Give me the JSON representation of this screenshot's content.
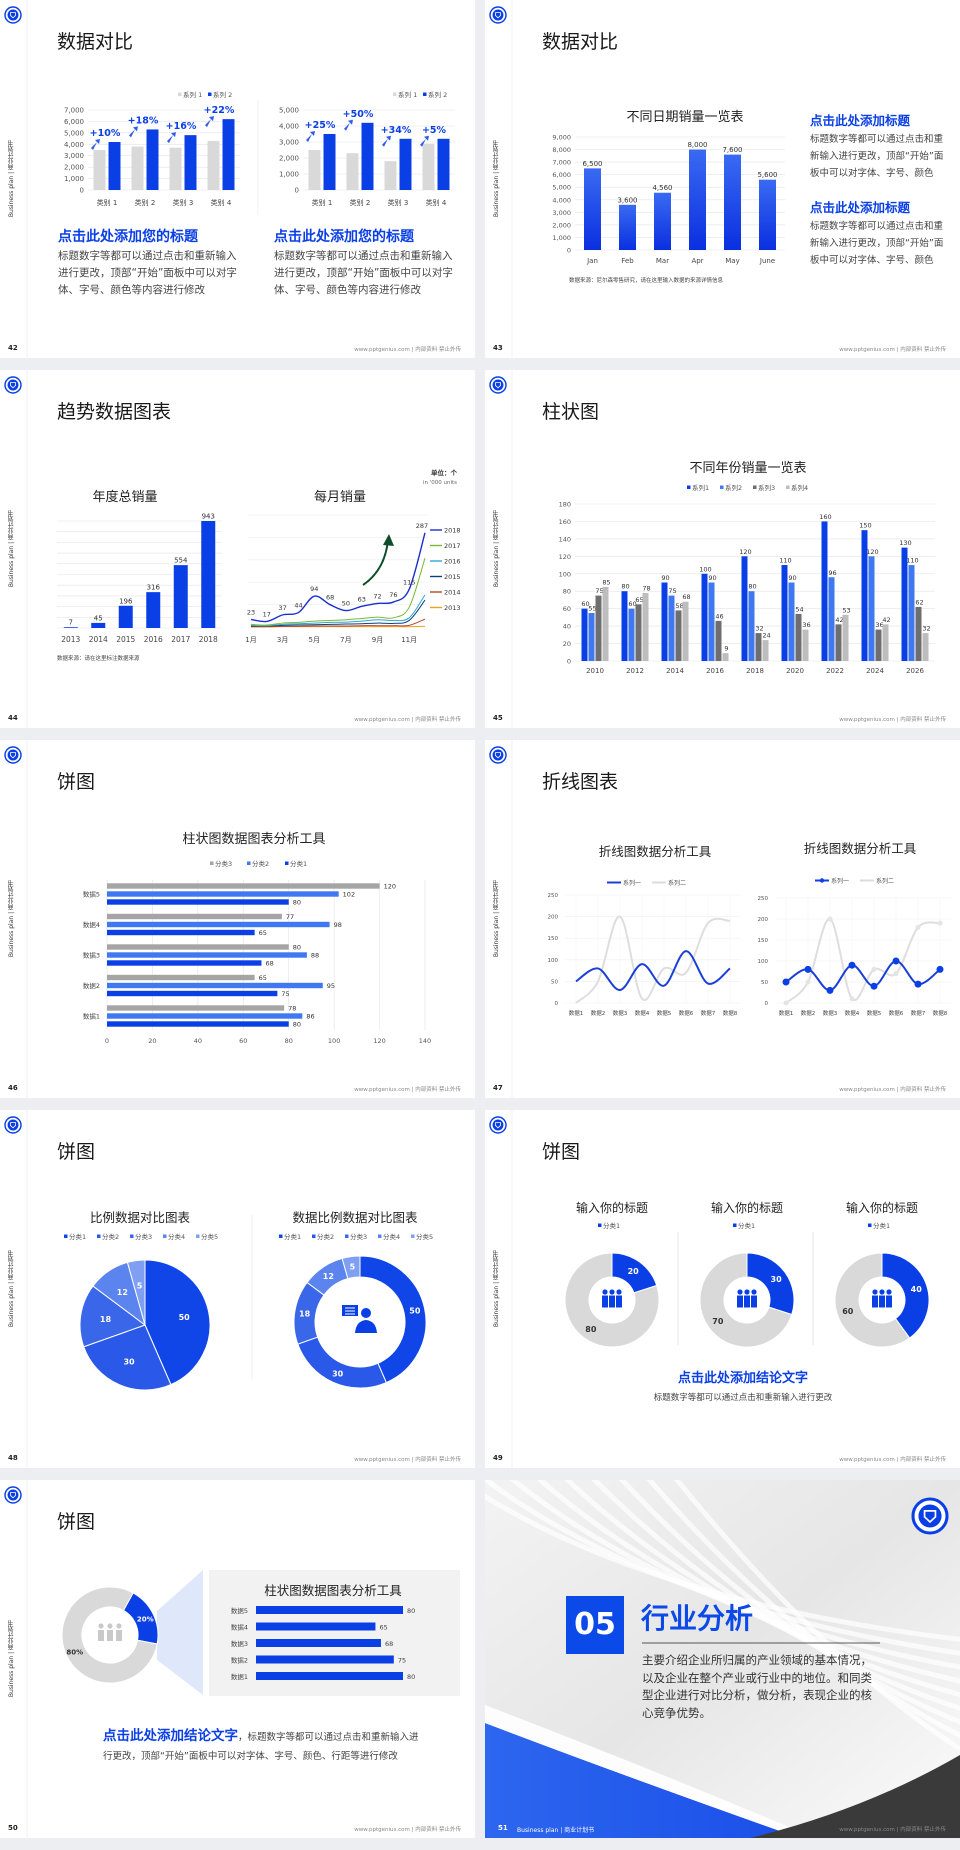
{
  "common": {
    "side_label": "Business plan | 商业计划书",
    "footer": "www.pptgenius.com | 内部资料 禁止外传"
  },
  "colors": {
    "primary": "#0b3fe6",
    "secondary": "#3f78f0",
    "gray": "#d9d9d9",
    "dark_gray": "#6e6e6e",
    "light_gray": "#bdbdbd"
  },
  "slides": [
    {
      "page": "42",
      "title": "数据对比",
      "blocks": [
        {
          "heading": "点击此处添加您的标题",
          "body": "标题数字等都可以通过点击和重新输入进行更改，顶部“开始”面板中可以对字体、字号、颜色等内容进行修改"
        },
        {
          "heading": "点击此处添加您的标题",
          "body": "标题数字等都可以通过点击和重新输入进行更改，顶部“开始”面板中可以对字体、字号、颜色等内容进行修改"
        }
      ]
    },
    {
      "page": "43",
      "title": "数据对比",
      "source": "数据来源：尼尔森零售研究，请在这里输入数据的来源详情信息",
      "blocks": [
        {
          "heading": "点击此处添加标题",
          "body": "标题数字等都可以通过点击和重新输入进行更改，顶部“开始”面板中可以对字体、字号、颜色"
        },
        {
          "heading": "点击此处添加标题",
          "body": "标题数字等都可以通过点击和重新输入进行更改，顶部“开始”面板中可以对字体、字号、颜色"
        }
      ]
    },
    {
      "page": "44",
      "title": "趋势数据图表",
      "source": "数据来源：请在这里标注数据来源",
      "unit": "单位：个",
      "unit_sub": "in '000 units"
    },
    {
      "page": "45",
      "title": "柱状图"
    },
    {
      "page": "46",
      "title": "饼图"
    },
    {
      "page": "47",
      "title": "折线图表"
    },
    {
      "page": "48",
      "title": "饼图"
    },
    {
      "page": "49",
      "title": "饼图",
      "conclusion": {
        "heading": "点击此处添加结论文字",
        "body": "标题数字等都可以通过点击和重新输入进行更改"
      }
    },
    {
      "page": "50",
      "title": "饼图",
      "conclusion": {
        "heading": "点击此处添加结论文字",
        "body": "，标题数字等都可以通过点击和重新输入进行更改，顶部“开始”面板中可以对字体、字号、颜色、行距等进行修改"
      }
    },
    {
      "page": "51",
      "section_number": "05",
      "section_title": "行业分析",
      "section_body": "主要介绍企业所归属的产业领域的基本情况，以及企业在整个产业或行业中的地位。和同类型企业进行对比分析，做分析，表现企业的核心竞争优势。",
      "footer_label": "Business plan | 商业计划书"
    }
  ],
  "chart_data": [
    {
      "type": "bar",
      "legend": [
        "系列 1",
        "系列 2"
      ],
      "categories": [
        "类别 1",
        "类别 2",
        "类别 3",
        "类别 4"
      ],
      "yticks": [
        "0",
        "1,000",
        "2,000",
        "3,000",
        "4,000",
        "5,000",
        "6,000",
        "7,000"
      ],
      "ylim": [
        0,
        7000
      ],
      "series": [
        {
          "name": "系列 1",
          "values": [
            3500,
            3800,
            3700,
            4300
          ]
        },
        {
          "name": "系列 2",
          "values": [
            4200,
            5300,
            4800,
            6200
          ]
        }
      ],
      "growth": [
        "+10%",
        "+18%",
        "+16%",
        "+22%"
      ],
      "legend_position": "top-right",
      "grid": true
    },
    {
      "type": "bar",
      "legend": [
        "系列 1",
        "系列 2"
      ],
      "categories": [
        "类别 1",
        "类别 2",
        "类别 3",
        "类别 4"
      ],
      "yticks": [
        "0",
        "1,000",
        "2,000",
        "3,000",
        "4,000",
        "5,000"
      ],
      "ylim": [
        0,
        5000
      ],
      "series": [
        {
          "name": "系列 1",
          "values": [
            2500,
            2300,
            1800,
            2900
          ]
        },
        {
          "name": "系列 2",
          "values": [
            3500,
            4200,
            3200,
            3200
          ]
        }
      ],
      "growth": [
        "+25%",
        "+50%",
        "+34%",
        "+5%"
      ],
      "legend_position": "top-right",
      "grid": true
    },
    {
      "type": "bar",
      "title": "不同日期销量一览表",
      "categories": [
        "Jan",
        "Feb",
        "Mar",
        "Apr",
        "May",
        "June"
      ],
      "yticks": [
        "0",
        "1,000",
        "2,000",
        "3,000",
        "4,000",
        "5,000",
        "6,000",
        "7,000",
        "8,000",
        "9,000"
      ],
      "ylim": [
        0,
        9000
      ],
      "series": [
        {
          "values": [
            6500,
            3600,
            4560,
            8000,
            7600,
            5600
          ],
          "value_labels": [
            "6,500",
            "3,600",
            "4,560",
            "8,000",
            "7,600",
            "5,600"
          ]
        }
      ],
      "grid": true
    },
    {
      "type": "bar",
      "title": "年度总销量",
      "categories": [
        "2013",
        "2014",
        "2015",
        "2016",
        "2017",
        "2018"
      ],
      "series": [
        {
          "values": [
            7,
            45,
            196,
            316,
            554,
            943
          ]
        }
      ],
      "grid": true
    },
    {
      "type": "line",
      "title": "每月销量",
      "x": [
        "1月",
        "2月",
        "3月",
        "4月",
        "5月",
        "6月",
        "7月",
        "8月",
        "9月",
        "10月",
        "11月",
        "12月"
      ],
      "xticks": [
        "1月",
        "3月",
        "5月",
        "7月",
        "9月",
        "11月"
      ],
      "legend_position": "right",
      "series": [
        {
          "name": "2018",
          "color": "#1a2fd0",
          "values": [
            23,
            17,
            37,
            44,
            94,
            68,
            50,
            63,
            72,
            76,
            115,
            287
          ]
        },
        {
          "name": "2017",
          "color": "#7ab833",
          "values": [
            8,
            6,
            12,
            14,
            18,
            20,
            22,
            26,
            30,
            28,
            60,
            210
          ]
        },
        {
          "name": "2016",
          "color": "#2fa5d8",
          "values": [
            5,
            4,
            8,
            10,
            12,
            14,
            15,
            18,
            22,
            20,
            28,
            98
          ]
        },
        {
          "name": "2015",
          "color": "#0f3f7a",
          "values": [
            3,
            3,
            5,
            6,
            7,
            8,
            9,
            10,
            12,
            11,
            20,
            82
          ]
        },
        {
          "name": "2014",
          "color": "#b5472a",
          "values": [
            1,
            1,
            2,
            2,
            3,
            3,
            3,
            4,
            4,
            4,
            5,
            24
          ]
        },
        {
          "name": "2013",
          "color": "#f0a020",
          "values": [
            0,
            0,
            1,
            1,
            1,
            1,
            1,
            1,
            1,
            1,
            1,
            2
          ]
        }
      ]
    },
    {
      "type": "bar",
      "title": "不同年份销量一览表",
      "categories": [
        "2010",
        "2012",
        "2014",
        "2016",
        "2018",
        "2020",
        "2022",
        "2024",
        "2026"
      ],
      "yticks": [
        "0",
        "20",
        "40",
        "60",
        "80",
        "100",
        "120",
        "140",
        "160",
        "180"
      ],
      "ylim": [
        0,
        180
      ],
      "legend_position": "top",
      "series": [
        {
          "name": "系列1",
          "values": [
            60,
            80,
            90,
            100,
            120,
            110,
            160,
            150,
            130
          ]
        },
        {
          "name": "系列2",
          "values": [
            55,
            60,
            75,
            90,
            80,
            90,
            96,
            120,
            110
          ]
        },
        {
          "name": "系列3",
          "values": [
            75,
            65,
            58,
            46,
            32,
            54,
            42,
            36,
            62
          ]
        },
        {
          "name": "系列4",
          "values": [
            85,
            78,
            68,
            9,
            24,
            36,
            53,
            42,
            32
          ]
        }
      ],
      "grid": true
    },
    {
      "type": "bar",
      "orientation": "horizontal",
      "title": "柱状图数据图表分析工具",
      "categories": [
        "数据1",
        "数据2",
        "数据3",
        "数据4",
        "数据5"
      ],
      "xticks": [
        "0",
        "20",
        "40",
        "60",
        "80",
        "100",
        "120",
        "140"
      ],
      "xlim": [
        0,
        140
      ],
      "legend_position": "top",
      "series": [
        {
          "name": "分类1",
          "values": [
            80,
            75,
            68,
            65,
            80
          ]
        },
        {
          "name": "分类2",
          "values": [
            86,
            95,
            88,
            98,
            102
          ]
        },
        {
          "name": "分类3",
          "values": [
            78,
            65,
            80,
            77,
            120
          ]
        }
      ],
      "grid": true
    },
    {
      "type": "line",
      "title": "折线图数据分析工具",
      "categories": [
        "数据1",
        "数据2",
        "数据3",
        "数据4",
        "数据5",
        "数据6",
        "数据7",
        "数据8"
      ],
      "yticks": [
        "0",
        "50",
        "100",
        "150",
        "200",
        "250"
      ],
      "ylim": [
        0,
        250
      ],
      "legend_position": "top",
      "series": [
        {
          "name": "系列一",
          "values": [
            50,
            80,
            30,
            90,
            40,
            120,
            45,
            80
          ]
        },
        {
          "name": "系列二",
          "values": [
            0,
            50,
            200,
            10,
            80,
            70,
            185,
            190
          ]
        }
      ]
    },
    {
      "type": "line",
      "title": "折线图数据分析工具",
      "categories": [
        "数据1",
        "数据2",
        "数据3",
        "数据4",
        "数据5",
        "数据6",
        "数据7",
        "数据8"
      ],
      "yticks": [
        "0",
        "50",
        "100",
        "150",
        "200",
        "250"
      ],
      "ylim": [
        0,
        250
      ],
      "legend_position": "top",
      "markers": true,
      "series": [
        {
          "name": "系列一",
          "values": [
            50,
            80,
            30,
            90,
            40,
            100,
            45,
            80
          ]
        },
        {
          "name": "系列二",
          "values": [
            0,
            50,
            200,
            10,
            80,
            70,
            180,
            190
          ]
        }
      ]
    },
    {
      "type": "pie",
      "title": "比例数据对比图表",
      "legend": [
        "分类1",
        "分类2",
        "分类3",
        "分类4",
        "分类5"
      ],
      "values": [
        50,
        30,
        18,
        12,
        5
      ],
      "legend_position": "top"
    },
    {
      "type": "pie",
      "variant": "donut",
      "title": "数据比例数据对比图表",
      "legend": [
        "分类1",
        "分类2",
        "分类3",
        "分类4",
        "分类5"
      ],
      "values": [
        50,
        30,
        18,
        12,
        5
      ],
      "legend_position": "top"
    },
    {
      "type": "pie",
      "variant": "donut",
      "title": "输入你的标题",
      "legend": [
        "分类1"
      ],
      "values": [
        20,
        80
      ]
    },
    {
      "type": "pie",
      "variant": "donut",
      "title": "输入你的标题",
      "legend": [
        "分类1"
      ],
      "values": [
        30,
        70
      ]
    },
    {
      "type": "pie",
      "variant": "donut",
      "title": "输入你的标题",
      "legend": [
        "分类1"
      ],
      "values": [
        40,
        60
      ]
    },
    {
      "type": "pie",
      "variant": "donut",
      "values": [
        20,
        80
      ],
      "labels": [
        "20%",
        "80%"
      ]
    },
    {
      "type": "bar",
      "orientation": "horizontal",
      "title": "柱状图数据图表分析工具",
      "categories": [
        "数据5",
        "数据4",
        "数据3",
        "数据2",
        "数据1"
      ],
      "series": [
        {
          "values": [
            80,
            65,
            68,
            75,
            80
          ]
        }
      ]
    }
  ]
}
